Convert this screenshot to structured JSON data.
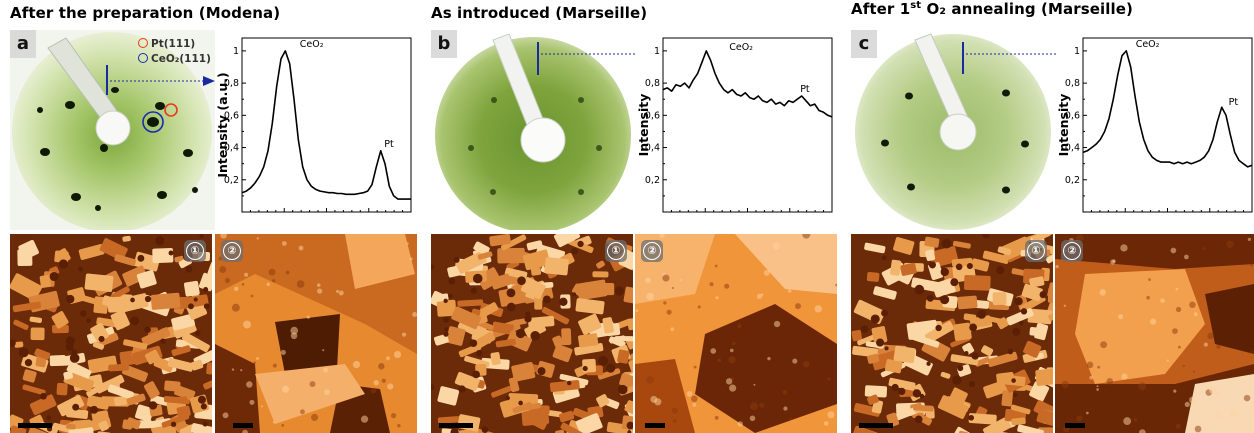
{
  "figure": {
    "columns": [
      {
        "title": "After the preparation (Modena)",
        "title_sup": "",
        "panel_label": "a",
        "legend": [
          {
            "label": "Pt(111)",
            "color": "#e53b1f"
          },
          {
            "label": "CeO₂(111)",
            "color": "#1a2bb0"
          }
        ],
        "leed_background": "#e6efcf",
        "stm_labels": [
          "①",
          "②"
        ],
        "chart_data": {
          "type": "line",
          "ylabel": "Intensity (a.u.)",
          "ytick_labels": [
            "0,2",
            "0,4",
            "0,6",
            "0,8",
            "1"
          ],
          "ylim": [
            0,
            1.08
          ],
          "annotations": [
            {
              "text": "CeO₂",
              "x": 0.33,
              "y": 1.0
            },
            {
              "text": "Pt",
              "x": 0.83,
              "y": 0.38
            }
          ],
          "series": [
            {
              "values": [
                0.12,
                0.13,
                0.15,
                0.18,
                0.22,
                0.28,
                0.38,
                0.55,
                0.78,
                0.95,
                1.0,
                0.92,
                0.7,
                0.45,
                0.28,
                0.2,
                0.16,
                0.14,
                0.13,
                0.125,
                0.12,
                0.12,
                0.115,
                0.115,
                0.11,
                0.11,
                0.11,
                0.115,
                0.12,
                0.13,
                0.17,
                0.28,
                0.38,
                0.3,
                0.16,
                0.1,
                0.08,
                0.08,
                0.08,
                0.08
              ]
            }
          ]
        }
      },
      {
        "title": "As introduced (Marseille)",
        "title_sup": "",
        "panel_label": "b",
        "legend": [],
        "leed_background": "#ffffff",
        "stm_labels": [
          "①",
          "②"
        ],
        "chart_data": {
          "type": "line",
          "ylabel": "Intensity",
          "ytick_labels": [
            "0,2",
            "0,4",
            "0,6",
            "0,8",
            "1"
          ],
          "ylim": [
            0,
            1.08
          ],
          "annotations": [
            {
              "text": "CeO₂",
              "x": 0.38,
              "y": 0.98
            },
            {
              "text": "Pt",
              "x": 0.8,
              "y": 0.72
            }
          ],
          "series": [
            {
              "values": [
                0.76,
                0.77,
                0.75,
                0.79,
                0.78,
                0.8,
                0.77,
                0.82,
                0.86,
                0.93,
                1.0,
                0.94,
                0.86,
                0.8,
                0.76,
                0.74,
                0.76,
                0.73,
                0.72,
                0.74,
                0.71,
                0.7,
                0.72,
                0.69,
                0.68,
                0.7,
                0.67,
                0.68,
                0.66,
                0.69,
                0.68,
                0.7,
                0.72,
                0.69,
                0.66,
                0.67,
                0.63,
                0.62,
                0.6,
                0.59
              ]
            }
          ]
        }
      },
      {
        "title": "After 1",
        "title_sup": "st",
        "title_rest": " O₂ annealing (Marseille)",
        "panel_label": "c",
        "legend": [],
        "leed_background": "#ffffff",
        "stm_labels": [
          "①",
          "②"
        ],
        "chart_data": {
          "type": "line",
          "ylabel": "Intensity",
          "ytick_labels": [
            "0,2",
            "0,4",
            "0,6",
            "0,8",
            "1"
          ],
          "ylim": [
            0,
            1.08
          ],
          "annotations": [
            {
              "text": "CeO₂",
              "x": 0.3,
              "y": 1.0
            },
            {
              "text": "Pt",
              "x": 0.85,
              "y": 0.64
            }
          ],
          "series": [
            {
              "values": [
                0.37,
                0.38,
                0.4,
                0.42,
                0.45,
                0.5,
                0.58,
                0.7,
                0.85,
                0.97,
                1.0,
                0.9,
                0.72,
                0.56,
                0.45,
                0.38,
                0.34,
                0.32,
                0.31,
                0.31,
                0.31,
                0.3,
                0.31,
                0.3,
                0.31,
                0.3,
                0.31,
                0.32,
                0.34,
                0.38,
                0.45,
                0.56,
                0.65,
                0.6,
                0.48,
                0.37,
                0.32,
                0.3,
                0.28,
                0.29
              ]
            }
          ]
        }
      }
    ]
  }
}
